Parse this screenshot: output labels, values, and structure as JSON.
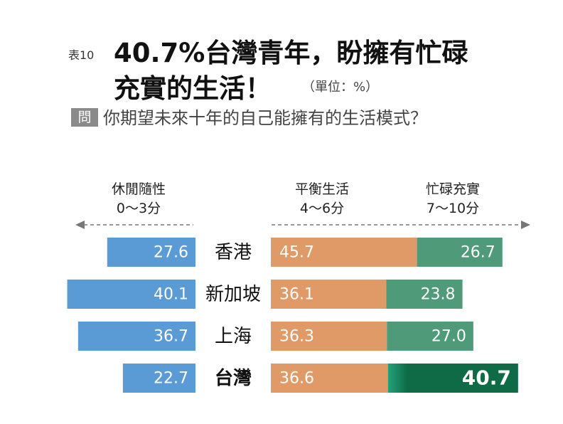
{
  "header": {
    "table_no": "表10",
    "title_line1": "40.7%台灣青年，盼擁有忙碌",
    "title_line2": "充實的生活！",
    "unit": "（單位：%）",
    "question_badge": "問",
    "question": "你期望未來十年的自己能擁有的生活模式？"
  },
  "chart_data": {
    "type": "bar",
    "stacked": true,
    "orientation": "horizontal",
    "legend": [
      {
        "key": "leisure",
        "label": "休閒隨性",
        "range": "0〜3分",
        "color": "#5a9bd5"
      },
      {
        "key": "balanced",
        "label": "平衡生活",
        "range": "4〜6分",
        "color": "#e09a68"
      },
      {
        "key": "busy",
        "label": "忙碌充實",
        "range": "7〜10分",
        "color": "#4f9a79"
      }
    ],
    "categories": [
      "香港",
      "新加坡",
      "上海",
      "台灣"
    ],
    "series": [
      {
        "name": "休閒隨性",
        "values": [
          27.6,
          40.1,
          36.7,
          22.7
        ]
      },
      {
        "name": "平衡生活",
        "values": [
          45.7,
          36.1,
          36.3,
          36.6
        ]
      },
      {
        "name": "忙碌充實",
        "values": [
          26.7,
          23.8,
          27.0,
          40.7
        ]
      }
    ],
    "value_labels": [
      [
        "27.6",
        "45.7",
        "26.7"
      ],
      [
        "40.1",
        "36.1",
        "23.8"
      ],
      [
        "36.7",
        "36.3",
        "27.0"
      ],
      [
        "22.7",
        "36.6",
        "40.7"
      ]
    ],
    "highlight_category": "台灣",
    "highlight_color": "#0e6b46"
  }
}
